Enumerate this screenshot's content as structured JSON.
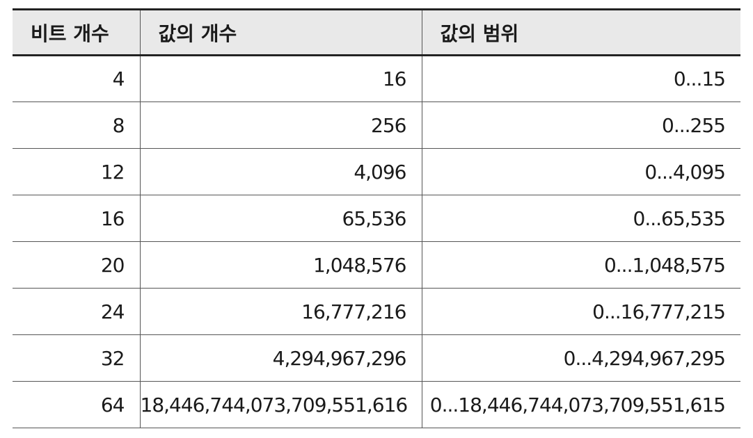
{
  "table": {
    "headers": [
      "비트 개수",
      "값의 개수",
      "값의 범위"
    ],
    "rows": [
      [
        "4",
        "16",
        "0...15"
      ],
      [
        "8",
        "256",
        "0...255"
      ],
      [
        "12",
        "4,096",
        "0...4,095"
      ],
      [
        "16",
        "65,536",
        "0...65,535"
      ],
      [
        "20",
        "1,048,576",
        "0...1,048,575"
      ],
      [
        "24",
        "16,777,216",
        "0...16,777,215"
      ],
      [
        "32",
        "4,294,967,296",
        "0...4,294,967,295"
      ],
      [
        "64",
        "18,446,744,073,709,551,616",
        "0...18,446,744,073,709,551,615"
      ]
    ]
  },
  "colors": {
    "header_background": "#e9e9e9",
    "rule": "#222222",
    "grid": "#555555",
    "text": "#1a1a1a"
  }
}
